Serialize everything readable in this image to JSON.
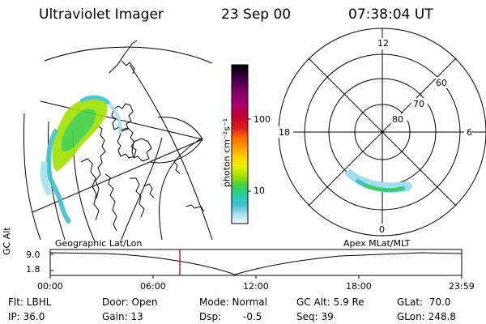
{
  "header": {
    "instrument": "Ultraviolet Imager",
    "date": "23 Sep 00",
    "time": "07:38:04 UT"
  },
  "colorbar": {
    "unit_label": "photon cm⁻²s⁻¹",
    "ticks": [
      "100",
      "10"
    ],
    "colors": [
      "#000000",
      "#3a0040",
      "#7a0060",
      "#a8007a",
      "#c00030",
      "#e02020",
      "#ff6a00",
      "#ff9a00",
      "#ffd000",
      "#e8f000",
      "#a0e000",
      "#40d040",
      "#20d0a0",
      "#40c0d0",
      "#a0e0ee",
      "#f0f8ff"
    ]
  },
  "polar_plot": {
    "mlt_labels": [
      "12",
      "18",
      "6",
      "0"
    ],
    "lat_labels": [
      "60",
      "70",
      "80"
    ]
  },
  "timeline": {
    "left_caption": "Geographic Lat/Lon",
    "right_caption": "Apex MLat/MLT",
    "axis_title": "GC Alt",
    "y_ticks": [
      "9.0",
      "1.8"
    ],
    "x_ticks": [
      "00:00",
      "06:00",
      "12:00",
      "18:00",
      "23:59"
    ],
    "marker_color": "#d02020"
  },
  "footer": {
    "flt": "Flt: LBHL",
    "ip": "IP: 36.0",
    "door": "Door: Open",
    "gain": "Gain: 13",
    "mode": "Mode: Normal",
    "dsp_label": "Dsp:",
    "dsp_value": "-0.5",
    "gc_alt": "GC Alt: 5.9 Re",
    "seq": "Seq: 39",
    "glat": "GLat:  70.0",
    "glon": "GLon: 248.8"
  }
}
